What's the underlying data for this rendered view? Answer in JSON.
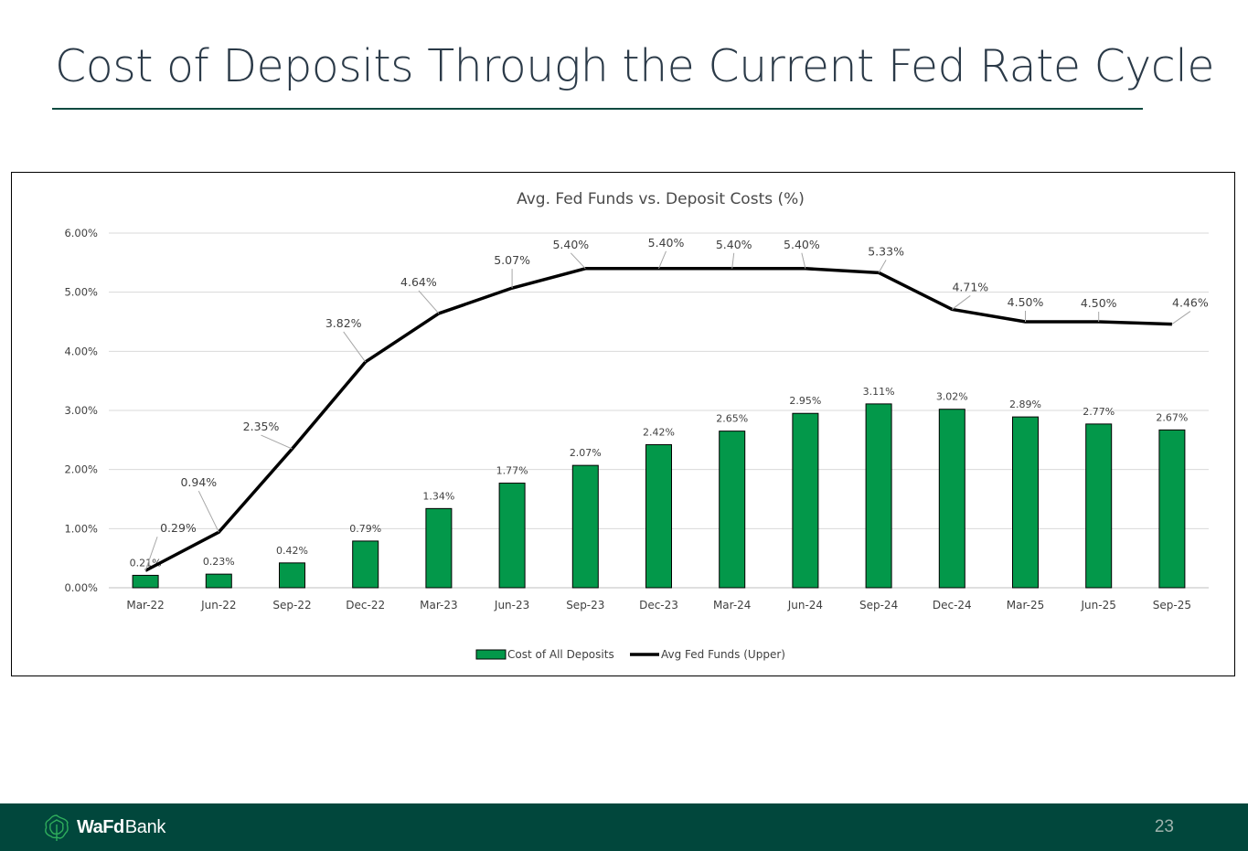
{
  "slide": {
    "title": "Cost of Deposits Through the Current Fed Rate Cycle",
    "page_number": "23"
  },
  "footer": {
    "logo_bold": "WaFd",
    "logo_regular": "Bank",
    "background": "#01473c"
  },
  "colors": {
    "bar": "#03984a",
    "line": "#000000",
    "grid": "#d9d9d9",
    "text": "#404040"
  },
  "chart_data": {
    "type": "bar",
    "title": "Avg. Fed Funds vs. Deposit Costs (%)",
    "xlabel": "",
    "ylabel": "",
    "ylim": [
      0,
      6
    ],
    "yticks": [
      "0.00%",
      "1.00%",
      "2.00%",
      "3.00%",
      "4.00%",
      "5.00%",
      "6.00%"
    ],
    "grid": true,
    "legend_position": "bottom",
    "categories": [
      "Mar-22",
      "Jun-22",
      "Sep-22",
      "Dec-22",
      "Mar-23",
      "Jun-23",
      "Sep-23",
      "Dec-23",
      "Mar-24",
      "Jun-24",
      "Sep-24",
      "Dec-24",
      "Mar-25",
      "Jun-25",
      "Sep-25"
    ],
    "series": [
      {
        "name": "Cost of All Deposits",
        "type": "bar",
        "values": [
          0.21,
          0.23,
          0.42,
          0.79,
          1.34,
          1.77,
          2.07,
          2.42,
          2.65,
          2.95,
          3.11,
          3.02,
          2.89,
          2.77,
          2.67
        ],
        "labels": [
          "0.21%",
          "0.23%",
          "0.42%",
          "0.79%",
          "1.34%",
          "1.77%",
          "2.07%",
          "2.42%",
          "2.65%",
          "2.95%",
          "3.11%",
          "3.02%",
          "2.89%",
          "2.77%",
          "2.67%"
        ]
      },
      {
        "name": "Avg Fed Funds (Upper)",
        "type": "line",
        "values": [
          0.29,
          0.94,
          2.35,
          3.82,
          4.64,
          5.07,
          5.4,
          5.4,
          5.4,
          5.4,
          5.33,
          4.71,
          4.5,
          4.5,
          4.46
        ],
        "labels": [
          "0.29%",
          "0.94%",
          "2.35%",
          "3.82%",
          "4.64%",
          "5.07%",
          "5.40%",
          "5.40%",
          "5.40%",
          "5.40%",
          "5.33%",
          "4.71%",
          "4.50%",
          "4.50%",
          "4.46%"
        ]
      }
    ]
  }
}
